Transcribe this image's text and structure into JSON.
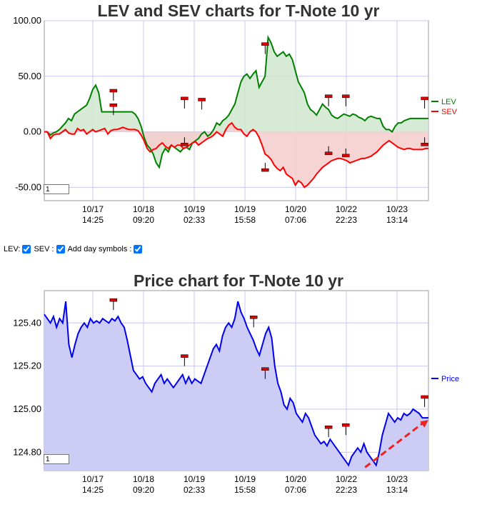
{
  "charts": {
    "top": {
      "title": "LEV and SEV charts for T-Note 10 yr",
      "scale_input": "1"
    },
    "bottom": {
      "title": "Price chart for T-Note 10 yr",
      "scale_input": "1"
    }
  },
  "controls": {
    "lev_label": "LEV:",
    "sev_label": "SEV :",
    "day_label": "Add day symbols :",
    "lev_checked": true,
    "sev_checked": true,
    "day_checked": true
  },
  "colors": {
    "lev": "#008000",
    "lev_fill": "#cfe6cf",
    "sev": "#ff0000",
    "sev_fill": "#f5cccc",
    "price": "#0000ee",
    "price_fill": "#ccccf5",
    "grid": "#c8c8f0",
    "marker": "#dd0000",
    "arrow": "#ee2222"
  },
  "chart_data": [
    {
      "type": "line",
      "title": "LEV and SEV charts for T-Note 10 yr",
      "x_ticks": [
        "10/17\n14:25",
        "10/18\n09:20",
        "10/19\n02:33",
        "10/19\n15:58",
        "10/20\n07:06",
        "10/22\n22:23",
        "10/23\n13:14"
      ],
      "y_ticks": [
        "100.00",
        "50.00",
        "0.00",
        "-50.00"
      ],
      "ylim": [
        -62,
        100
      ],
      "grid": true,
      "legend": "right",
      "series": [
        {
          "name": "LEV",
          "values": [
            0,
            0,
            -3,
            -1,
            0,
            2,
            5,
            8,
            12,
            10,
            16,
            18,
            20,
            22,
            24,
            30,
            38,
            42,
            35,
            18,
            18,
            18,
            18,
            18,
            18,
            18,
            18,
            18,
            18,
            18,
            16,
            12,
            5,
            -5,
            -12,
            -15,
            -20,
            -28,
            -32,
            -20,
            -15,
            -18,
            -12,
            -14,
            -16,
            -18,
            -15,
            -14,
            -16,
            -10,
            -8,
            -6,
            -2,
            0,
            -4,
            -2,
            2,
            8,
            6,
            10,
            12,
            15,
            20,
            25,
            35,
            45,
            50,
            52,
            48,
            52,
            55,
            40,
            45,
            50,
            85,
            80,
            72,
            68,
            70,
            72,
            68,
            70,
            65,
            55,
            45,
            40,
            35,
            25,
            20,
            18,
            15,
            20,
            25,
            22,
            20,
            15,
            13,
            12,
            14,
            16,
            15,
            14,
            16,
            15,
            13,
            12,
            10,
            13,
            14,
            13,
            12,
            12,
            5,
            2,
            2,
            0,
            5,
            8,
            8,
            10,
            11,
            12,
            12,
            12,
            12,
            12,
            12,
            12
          ],
          "color": "#008000"
        },
        {
          "name": "SEV",
          "values": [
            0,
            0,
            -6,
            -3,
            -2,
            -2,
            0,
            2,
            -1,
            -2,
            -2,
            3,
            1,
            2,
            -2,
            0,
            2,
            0,
            1,
            2,
            3,
            -2,
            1,
            2,
            2,
            3,
            4,
            3,
            2,
            2,
            2,
            1,
            -3,
            -8,
            -15,
            -18,
            -16,
            -15,
            -12,
            -10,
            -13,
            -15,
            -12,
            -14,
            -12,
            -12,
            -15,
            -14,
            -12,
            -10,
            -9,
            -12,
            -10,
            -8,
            -6,
            -5,
            -3,
            0,
            -2,
            -4,
            2,
            6,
            8,
            4,
            2,
            2,
            -2,
            -4,
            0,
            2,
            0,
            -5,
            -12,
            -20,
            -22,
            -25,
            -30,
            -33,
            -35,
            -32,
            -38,
            -40,
            -42,
            -48,
            -44,
            -46,
            -50,
            -48,
            -45,
            -42,
            -38,
            -35,
            -32,
            -30,
            -28,
            -26,
            -25,
            -24,
            -24,
            -25,
            -26,
            -28,
            -27,
            -26,
            -25,
            -24,
            -24,
            -23,
            -22,
            -20,
            -18,
            -15,
            -12,
            -10,
            -8,
            -10,
            -12,
            -14,
            -15,
            -16,
            -15,
            -15,
            -16,
            -16,
            -16,
            -16,
            -15,
            -15
          ],
          "color": "#ff0000"
        }
      ],
      "markers": [
        {
          "series": "LEV",
          "x_frac": 0.18,
          "value": 28
        },
        {
          "series": "LEV",
          "x_frac": 0.18,
          "value": 15
        },
        {
          "series": "LEV",
          "x_frac": 0.365,
          "value": -5
        },
        {
          "series": "LEV",
          "x_frac": 0.365,
          "value": 21
        },
        {
          "series": "LEV",
          "x_frac": 0.41,
          "value": 20
        },
        {
          "series": "LEV",
          "x_frac": 0.575,
          "value": 70
        },
        {
          "series": "LEV",
          "x_frac": 0.575,
          "value": -28
        },
        {
          "series": "LEV",
          "x_frac": 0.74,
          "value": 23
        },
        {
          "series": "LEV",
          "x_frac": 0.74,
          "value": -13
        },
        {
          "series": "LEV",
          "x_frac": 0.785,
          "value": 23
        },
        {
          "series": "LEV",
          "x_frac": 0.785,
          "value": -15
        },
        {
          "series": "LEV",
          "x_frac": 0.99,
          "value": 21
        },
        {
          "series": "LEV",
          "x_frac": 0.99,
          "value": -5
        }
      ]
    },
    {
      "type": "area",
      "title": "Price chart for T-Note 10 yr",
      "x_ticks": [
        "10/17\n14:25",
        "10/18\n09:20",
        "10/19\n02:33",
        "10/19\n15:58",
        "10/20\n07:06",
        "10/22\n22:23",
        "10/23\n13:14"
      ],
      "y_ticks": [
        "125.40",
        "125.20",
        "125.00",
        "124.80"
      ],
      "ylim": [
        124.715,
        125.55
      ],
      "grid": true,
      "legend": "right",
      "series": [
        {
          "name": "Price",
          "values": [
            125.44,
            125.42,
            125.4,
            125.43,
            125.38,
            125.42,
            125.4,
            125.5,
            125.3,
            125.24,
            125.3,
            125.35,
            125.38,
            125.4,
            125.38,
            125.42,
            125.4,
            125.41,
            125.4,
            125.42,
            125.41,
            125.4,
            125.42,
            125.41,
            125.43,
            125.4,
            125.38,
            125.32,
            125.25,
            125.18,
            125.16,
            125.14,
            125.15,
            125.12,
            125.1,
            125.08,
            125.12,
            125.14,
            125.16,
            125.12,
            125.14,
            125.12,
            125.1,
            125.12,
            125.14,
            125.16,
            125.12,
            125.15,
            125.12,
            125.14,
            125.13,
            125.12,
            125.16,
            125.2,
            125.24,
            125.28,
            125.3,
            125.27,
            125.34,
            125.38,
            125.4,
            125.38,
            125.42,
            125.5,
            125.45,
            125.42,
            125.38,
            125.35,
            125.32,
            125.28,
            125.25,
            125.3,
            125.35,
            125.38,
            125.33,
            125.2,
            125.12,
            125.08,
            125.02,
            125.0,
            125.05,
            125.03,
            124.98,
            124.96,
            124.94,
            124.98,
            124.96,
            124.92,
            124.88,
            124.86,
            124.84,
            124.85,
            124.83,
            124.86,
            124.84,
            124.82,
            124.8,
            124.78,
            124.76,
            124.74,
            124.78,
            124.8,
            124.82,
            124.8,
            124.84,
            124.8,
            124.78,
            124.76,
            124.74,
            124.8,
            124.88,
            124.93,
            124.98,
            124.96,
            124.94,
            124.96,
            124.95,
            124.98,
            124.97,
            124.98,
            125.0,
            124.99,
            124.98,
            124.96,
            124.96,
            124.96
          ],
          "color": "#0000ee"
        }
      ],
      "markers": [
        {
          "series": "Price",
          "x_frac": 0.18,
          "value": 125.46
        },
        {
          "series": "Price",
          "x_frac": 0.365,
          "value": 125.2
        },
        {
          "series": "Price",
          "x_frac": 0.545,
          "value": 125.38
        },
        {
          "series": "Price",
          "x_frac": 0.575,
          "value": 125.14
        },
        {
          "series": "Price",
          "x_frac": 0.74,
          "value": 124.87
        },
        {
          "series": "Price",
          "x_frac": 0.785,
          "value": 124.88
        },
        {
          "series": "Price",
          "x_frac": 0.99,
          "value": 125.01
        }
      ],
      "annotations": [
        {
          "type": "dashed-arrow",
          "from": [
            0.835,
            124.73
          ],
          "to": [
            1.0,
            124.95
          ]
        }
      ]
    }
  ]
}
